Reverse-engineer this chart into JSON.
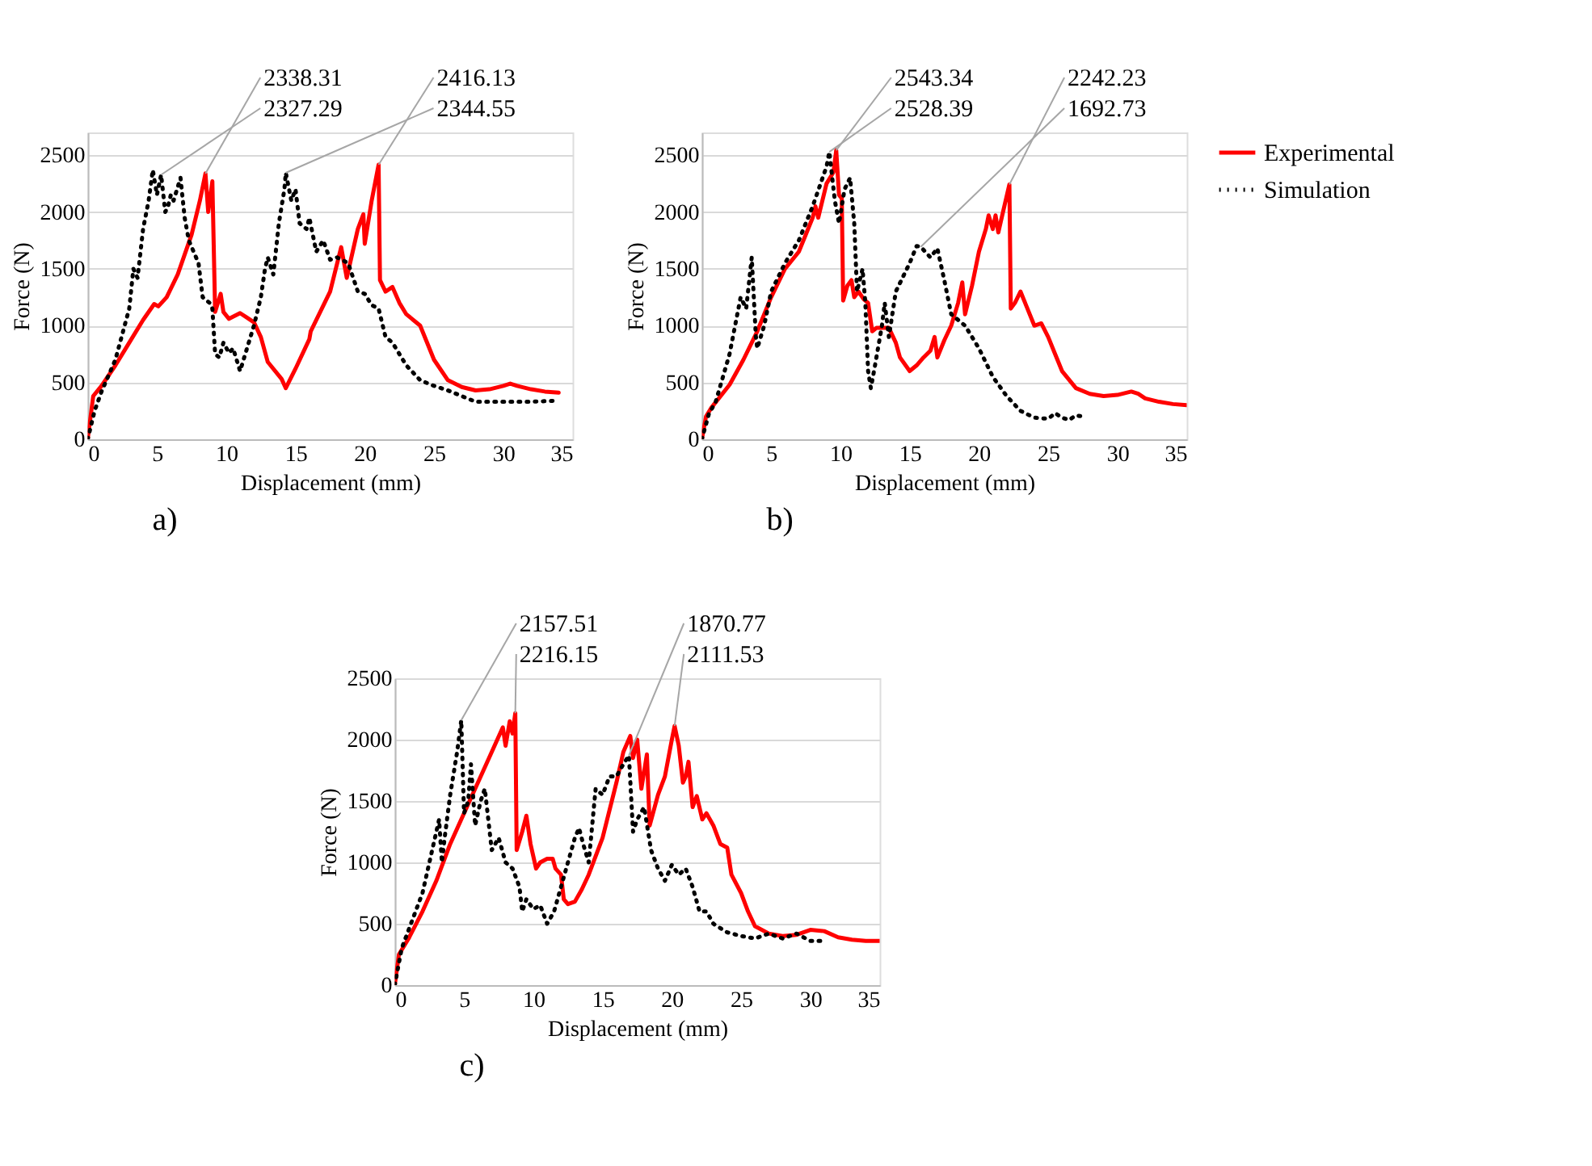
{
  "chart_data": [
    {
      "type": "line",
      "xlabel": "Displacement (mm)",
      "ylabel": "Force (N)",
      "xlim": [
        0,
        35
      ],
      "xticks": [
        0,
        5,
        10,
        15,
        20,
        25,
        30,
        35
      ],
      "ylim": [
        0,
        2700
      ],
      "yticks": [
        0,
        500,
        1000,
        1500,
        2000,
        2500
      ],
      "grid": "y",
      "legend": "right",
      "series": [
        {
          "name": "Experimental",
          "color": "#ff0000",
          "line_style": "solid",
          "x": [
            0,
            0.4,
            1,
            2,
            3,
            4,
            4.8,
            5.1,
            5.7,
            6.5,
            7.5,
            8.1,
            8.5,
            8.7,
            9.0,
            9.2,
            9.6,
            9.8,
            10.2,
            11,
            11.5,
            12,
            12.5,
            13,
            14,
            14.3,
            15,
            16,
            16.1,
            17.5,
            18.3,
            18.7,
            19.5,
            19.9,
            20,
            20.5,
            21,
            21.1,
            21.5,
            22,
            22.5,
            23,
            24,
            25,
            26,
            27,
            28,
            29,
            30,
            30.5,
            31,
            32,
            33,
            34
          ],
          "values": [
            0,
            380,
            470,
            650,
            850,
            1050,
            1190,
            1170,
            1250,
            1450,
            1800,
            2100,
            2338.31,
            2000,
            2270,
            1120,
            1280,
            1120,
            1060,
            1110,
            1070,
            1030,
            900,
            680,
            530,
            450,
            620,
            880,
            950,
            1300,
            1690,
            1420,
            1850,
            1980,
            1720,
            2100,
            2416.13,
            1400,
            1300,
            1340,
            1200,
            1100,
            1000,
            700,
            520,
            460,
            430,
            440,
            470,
            490,
            470,
            440,
            420,
            410
          ]
        },
        {
          "name": "Simulation",
          "color": "#000000",
          "line_style": "dotted",
          "x": [
            0,
            0.5,
            1,
            2,
            3,
            3.3,
            3.6,
            4,
            4.4,
            4.7,
            5.0,
            5.3,
            5.6,
            5.8,
            6.0,
            6.2,
            6.7,
            7.0,
            7.3,
            8.0,
            8.3,
            8.8,
            9.0,
            9.2,
            9.5,
            9.8,
            10.2,
            10.5,
            11,
            11.5,
            12,
            12.5,
            12.8,
            13,
            13.4,
            13.8,
            14.2,
            14.3,
            14.7,
            15,
            15.3,
            15.8,
            16,
            16.5,
            17,
            17.5,
            18,
            18.8,
            19.5,
            20,
            20.5,
            21,
            21.5,
            22,
            23,
            24,
            25,
            26,
            27,
            28,
            30,
            32,
            34
          ],
          "values": [
            0,
            250,
            420,
            700,
            1150,
            1500,
            1420,
            1850,
            2100,
            2370,
            2150,
            2327.29,
            2000,
            2050,
            2150,
            2100,
            2300,
            1950,
            1750,
            1550,
            1250,
            1200,
            1150,
            750,
            720,
            850,
            760,
            800,
            600,
            800,
            1000,
            1250,
            1500,
            1600,
            1450,
            1900,
            2200,
            2344.55,
            2100,
            2200,
            1900,
            1850,
            1950,
            1650,
            1750,
            1580,
            1600,
            1550,
            1300,
            1280,
            1180,
            1150,
            900,
            850,
            650,
            520,
            470,
            430,
            380,
            330,
            330,
            330,
            340
          ]
        }
      ],
      "annotations": [
        "a)",
        {
          "text": "2338.31",
          "x": 8.5,
          "y": 2338.31
        },
        {
          "text": "2327.29",
          "x": 5.3,
          "y": 2327.29
        },
        {
          "text": "2416.13",
          "x": 21,
          "y": 2416.13
        },
        {
          "text": "2344.55",
          "x": 14.3,
          "y": 2344.55
        }
      ]
    },
    {
      "type": "line",
      "xlabel": "Displacement (mm)",
      "ylabel": "Force (N)",
      "xlim": [
        0,
        35
      ],
      "xticks": [
        0,
        5,
        10,
        15,
        20,
        25,
        30,
        35
      ],
      "ylim": [
        0,
        2700
      ],
      "yticks": [
        0,
        500,
        1000,
        1500,
        2000,
        2500
      ],
      "grid": "y",
      "legend": "right",
      "series": [
        {
          "name": "Experimental",
          "color": "#ff0000",
          "line_style": "solid",
          "x": [
            0,
            0.3,
            0.7,
            2,
            3,
            4,
            5,
            6,
            7,
            8,
            8.2,
            8.4,
            9,
            9.5,
            9.7,
            9.9,
            10.1,
            10.2,
            10.5,
            10.8,
            11,
            11.3,
            11.7,
            12,
            12.3,
            12.6,
            13.5,
            14,
            14.3,
            15,
            15.5,
            16,
            16.5,
            16.8,
            17,
            17.5,
            18,
            18.5,
            18.8,
            19,
            19.5,
            20,
            20.5,
            20.7,
            21,
            21.2,
            21.4,
            21.7,
            22.2,
            22.3,
            22.6,
            23,
            23.5,
            24,
            24.5,
            25,
            25.5,
            26,
            27,
            28,
            29,
            30,
            31,
            31.5,
            32,
            33,
            34,
            35
          ],
          "values": [
            0,
            200,
            280,
            480,
            700,
            950,
            1250,
            1500,
            1650,
            1950,
            2050,
            1950,
            2250,
            2350,
            2543.34,
            2150,
            2120,
            1220,
            1350,
            1400,
            1250,
            1300,
            1230,
            1200,
            950,
            980,
            980,
            850,
            720,
            600,
            650,
            720,
            780,
            900,
            720,
            870,
            1000,
            1200,
            1380,
            1100,
            1350,
            1650,
            1850,
            1970,
            1850,
            1970,
            1820,
            1980,
            2242.23,
            1150,
            1200,
            1300,
            1150,
            1000,
            1020,
            900,
            750,
            600,
            450,
            400,
            380,
            390,
            420,
            400,
            360,
            330,
            310,
            300
          ]
        },
        {
          "name": "Simulation",
          "color": "#000000",
          "line_style": "dotted",
          "x": [
            0,
            0.5,
            1,
            2,
            2.8,
            3.2,
            3.6,
            3.9,
            4,
            4.5,
            5,
            6,
            7,
            8,
            9,
            9.2,
            9.6,
            9.9,
            10.3,
            10.7,
            11,
            11.2,
            11.6,
            11.8,
            12,
            12.2,
            12.5,
            13,
            13.2,
            13.5,
            14,
            15,
            15.5,
            15.8,
            16.5,
            17,
            17.5,
            18,
            19,
            20,
            21,
            22,
            23,
            24,
            25,
            25.5,
            26,
            26.5,
            27,
            27.5
          ],
          "values": [
            0,
            220,
            330,
            750,
            1250,
            1150,
            1600,
            900,
            800,
            1000,
            1300,
            1550,
            1750,
            2050,
            2400,
            2528.39,
            2100,
            1900,
            2200,
            2300,
            1900,
            1300,
            1500,
            1200,
            600,
            450,
            650,
            1000,
            1200,
            900,
            1300,
            1550,
            1700,
            1692.73,
            1600,
            1680,
            1400,
            1100,
            1000,
            800,
            550,
            380,
            250,
            190,
            180,
            230,
            190,
            170,
            210,
            200
          ]
        }
      ],
      "annotations": [
        "b)",
        {
          "text": "2543.34",
          "x": 9.7,
          "y": 2543.34
        },
        {
          "text": "2528.39",
          "x": 9.2,
          "y": 2528.39
        },
        {
          "text": "2242.23",
          "x": 22.2,
          "y": 2242.23
        },
        {
          "text": "1692.73",
          "x": 15.8,
          "y": 1692.73
        }
      ]
    },
    {
      "type": "line",
      "xlabel": "Displacement (mm)",
      "ylabel": "Force (N)",
      "xlim": [
        0,
        35
      ],
      "xticks": [
        0,
        5,
        10,
        15,
        20,
        25,
        30,
        35
      ],
      "ylim": [
        0,
        2500
      ],
      "yticks": [
        0,
        500,
        1000,
        1500,
        2000,
        2500
      ],
      "grid": "y",
      "legend": "right",
      "series": [
        {
          "name": "Experimental",
          "color": "#ff0000",
          "line_style": "solid",
          "x": [
            0,
            0.3,
            1,
            2,
            3,
            4,
            5,
            6,
            7,
            7.8,
            8.0,
            8.3,
            8.5,
            8.7,
            8.8,
            9.2,
            9.5,
            9.8,
            10,
            10.2,
            10.5,
            11,
            11.4,
            11.6,
            12,
            12.2,
            12.5,
            13,
            13.5,
            14,
            15,
            16,
            16.5,
            17,
            17.2,
            17.5,
            17.8,
            18.2,
            18.4,
            19,
            19.5,
            20,
            20.2,
            20.5,
            20.8,
            21,
            21.2,
            21.5,
            21.8,
            22.2,
            22.5,
            23,
            23.5,
            24,
            24.3,
            25,
            25.5,
            26,
            27,
            28,
            29,
            30,
            31,
            32,
            33,
            34,
            35
          ],
          "values": [
            0,
            250,
            380,
            600,
            850,
            1150,
            1400,
            1650,
            1900,
            2100,
            1950,
            2150,
            2050,
            2216.15,
            1100,
            1250,
            1380,
            1150,
            1050,
            950,
            1000,
            1030,
            1030,
            950,
            900,
            700,
            660,
            680,
            780,
            900,
            1200,
            1650,
            1900,
            2030,
            1850,
            2000,
            1600,
            1880,
            1300,
            1550,
            1700,
            2000,
            2111.53,
            1950,
            1650,
            1700,
            1820,
            1450,
            1540,
            1350,
            1400,
            1300,
            1150,
            1120,
            900,
            750,
            600,
            480,
            420,
            400,
            410,
            450,
            440,
            390,
            370,
            360,
            360
          ]
        },
        {
          "name": "Simulation",
          "color": "#000000",
          "line_style": "dotted",
          "x": [
            0,
            0.5,
            1,
            2,
            3,
            3.2,
            3.4,
            3.6,
            4,
            4.5,
            4.8,
            5.0,
            5.3,
            5.5,
            5.8,
            6.2,
            6.5,
            7,
            7.5,
            8,
            8.5,
            9.0,
            9.2,
            9.5,
            10,
            10.5,
            11,
            11.5,
            12,
            12.5,
            13,
            13.3,
            13.6,
            14,
            14.5,
            15,
            15.5,
            16,
            16.5,
            16.9,
            17.2,
            17.5,
            18,
            18.5,
            19,
            19.5,
            20,
            20.5,
            21,
            21.5,
            22,
            22.5,
            23,
            24,
            25,
            26,
            27,
            28,
            29,
            30,
            31
          ],
          "values": [
            0,
            300,
            450,
            750,
            1250,
            1350,
            1000,
            1200,
            1550,
            1900,
            2157.51,
            1400,
            1500,
            1800,
            1300,
            1500,
            1600,
            1100,
            1200,
            1000,
            950,
            800,
            600,
            700,
            620,
            650,
            500,
            600,
            800,
            1000,
            1200,
            1280,
            1150,
            1000,
            1600,
            1550,
            1700,
            1700,
            1800,
            1870.77,
            1250,
            1350,
            1450,
            1100,
            950,
            850,
            980,
            900,
            950,
            800,
            600,
            600,
            500,
            430,
            400,
            380,
            420,
            380,
            420,
            360,
            360
          ]
        }
      ],
      "annotations": [
        "c)",
        {
          "text": "2157.51",
          "x": 4.8,
          "y": 2157.51
        },
        {
          "text": "2216.15",
          "x": 8.7,
          "y": 2216.15
        },
        {
          "text": "1870.77",
          "x": 16.9,
          "y": 1870.77
        },
        {
          "text": "2111.53",
          "x": 20.2,
          "y": 2111.53
        }
      ]
    }
  ]
}
